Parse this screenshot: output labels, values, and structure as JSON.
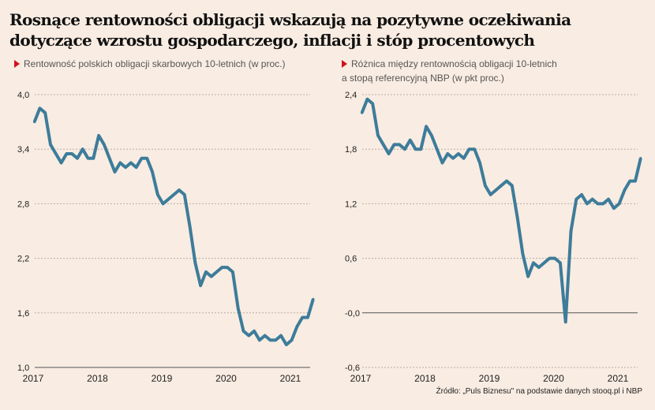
{
  "title": "Rosnące rentowności obligacji wskazują na pozytywne oczekiwania dotyczące wzrostu gospodarczego, inflacji i stóp procentowych",
  "source": "Źródło: „Puls Biznesu\" na podstawie danych stooq.pl i NBP",
  "colors": {
    "line": "#3d7c9a",
    "marker": "#d0121b",
    "background": "#f9ece2"
  },
  "chart_data": [
    {
      "type": "line",
      "title": "Rentowność polskich obligacji skarbowych 10-letnich (w proc.)",
      "x_ticks": [
        "2017",
        "2018",
        "2019",
        "2020",
        "2021"
      ],
      "y_ticks": [
        "4,0",
        "3,4",
        "2,8",
        "2,2",
        "1,6",
        "1,0"
      ],
      "ylim": [
        1.0,
        4.0
      ],
      "grid": true,
      "x_dates": [
        "2017-01",
        "2017-02",
        "2017-03",
        "2017-04",
        "2017-05",
        "2017-06",
        "2017-07",
        "2017-08",
        "2017-09",
        "2017-10",
        "2017-11",
        "2017-12",
        "2018-01",
        "2018-02",
        "2018-03",
        "2018-04",
        "2018-05",
        "2018-06",
        "2018-07",
        "2018-08",
        "2018-09",
        "2018-10",
        "2018-11",
        "2018-12",
        "2019-01",
        "2019-02",
        "2019-03",
        "2019-04",
        "2019-05",
        "2019-06",
        "2019-07",
        "2019-08",
        "2019-09",
        "2019-10",
        "2019-11",
        "2019-12",
        "2020-01",
        "2020-02",
        "2020-03",
        "2020-04",
        "2020-05",
        "2020-06",
        "2020-07",
        "2020-08",
        "2020-09",
        "2020-10",
        "2020-11",
        "2020-12",
        "2021-01",
        "2021-02",
        "2021-03",
        "2021-04",
        "2021-05"
      ],
      "values": [
        3.7,
        3.85,
        3.8,
        3.45,
        3.35,
        3.25,
        3.35,
        3.35,
        3.3,
        3.4,
        3.3,
        3.3,
        3.55,
        3.45,
        3.3,
        3.15,
        3.25,
        3.2,
        3.25,
        3.2,
        3.3,
        3.3,
        3.15,
        2.9,
        2.8,
        2.85,
        2.9,
        2.95,
        2.9,
        2.55,
        2.15,
        1.9,
        2.05,
        2.0,
        2.05,
        2.1,
        2.1,
        2.05,
        1.65,
        1.4,
        1.35,
        1.4,
        1.3,
        1.35,
        1.3,
        1.3,
        1.35,
        1.25,
        1.3,
        1.45,
        1.55,
        1.55,
        1.75
      ]
    },
    {
      "type": "line",
      "title": "Różnica między rentownością obligacji 10-letnich a stopą referencyjną NBP (w pkt proc.)",
      "x_ticks": [
        "2017",
        "2018",
        "2019",
        "2020",
        "2021"
      ],
      "y_ticks": [
        "2,4",
        "1,8",
        "1,2",
        "0,6",
        "-0,0",
        "-0,6"
      ],
      "ylim": [
        -0.6,
        2.4
      ],
      "grid": true,
      "x_dates": [
        "2017-01",
        "2017-02",
        "2017-03",
        "2017-04",
        "2017-05",
        "2017-06",
        "2017-07",
        "2017-08",
        "2017-09",
        "2017-10",
        "2017-11",
        "2017-12",
        "2018-01",
        "2018-02",
        "2018-03",
        "2018-04",
        "2018-05",
        "2018-06",
        "2018-07",
        "2018-08",
        "2018-09",
        "2018-10",
        "2018-11",
        "2018-12",
        "2019-01",
        "2019-02",
        "2019-03",
        "2019-04",
        "2019-05",
        "2019-06",
        "2019-07",
        "2019-08",
        "2019-09",
        "2019-10",
        "2019-11",
        "2019-12",
        "2020-01",
        "2020-02",
        "2020-03",
        "2020-04",
        "2020-05",
        "2020-06",
        "2020-07",
        "2020-08",
        "2020-09",
        "2020-10",
        "2020-11",
        "2020-12",
        "2021-01",
        "2021-02",
        "2021-03",
        "2021-04",
        "2021-05"
      ],
      "values": [
        2.2,
        2.35,
        2.3,
        1.95,
        1.85,
        1.75,
        1.85,
        1.85,
        1.8,
        1.9,
        1.8,
        1.8,
        2.05,
        1.95,
        1.8,
        1.65,
        1.75,
        1.7,
        1.75,
        1.7,
        1.8,
        1.8,
        1.65,
        1.4,
        1.3,
        1.35,
        1.4,
        1.45,
        1.4,
        1.05,
        0.65,
        0.4,
        0.55,
        0.5,
        0.55,
        0.6,
        0.6,
        0.55,
        -0.1,
        0.9,
        1.25,
        1.3,
        1.2,
        1.25,
        1.2,
        1.2,
        1.25,
        1.15,
        1.2,
        1.35,
        1.45,
        1.45,
        1.7
      ]
    }
  ]
}
